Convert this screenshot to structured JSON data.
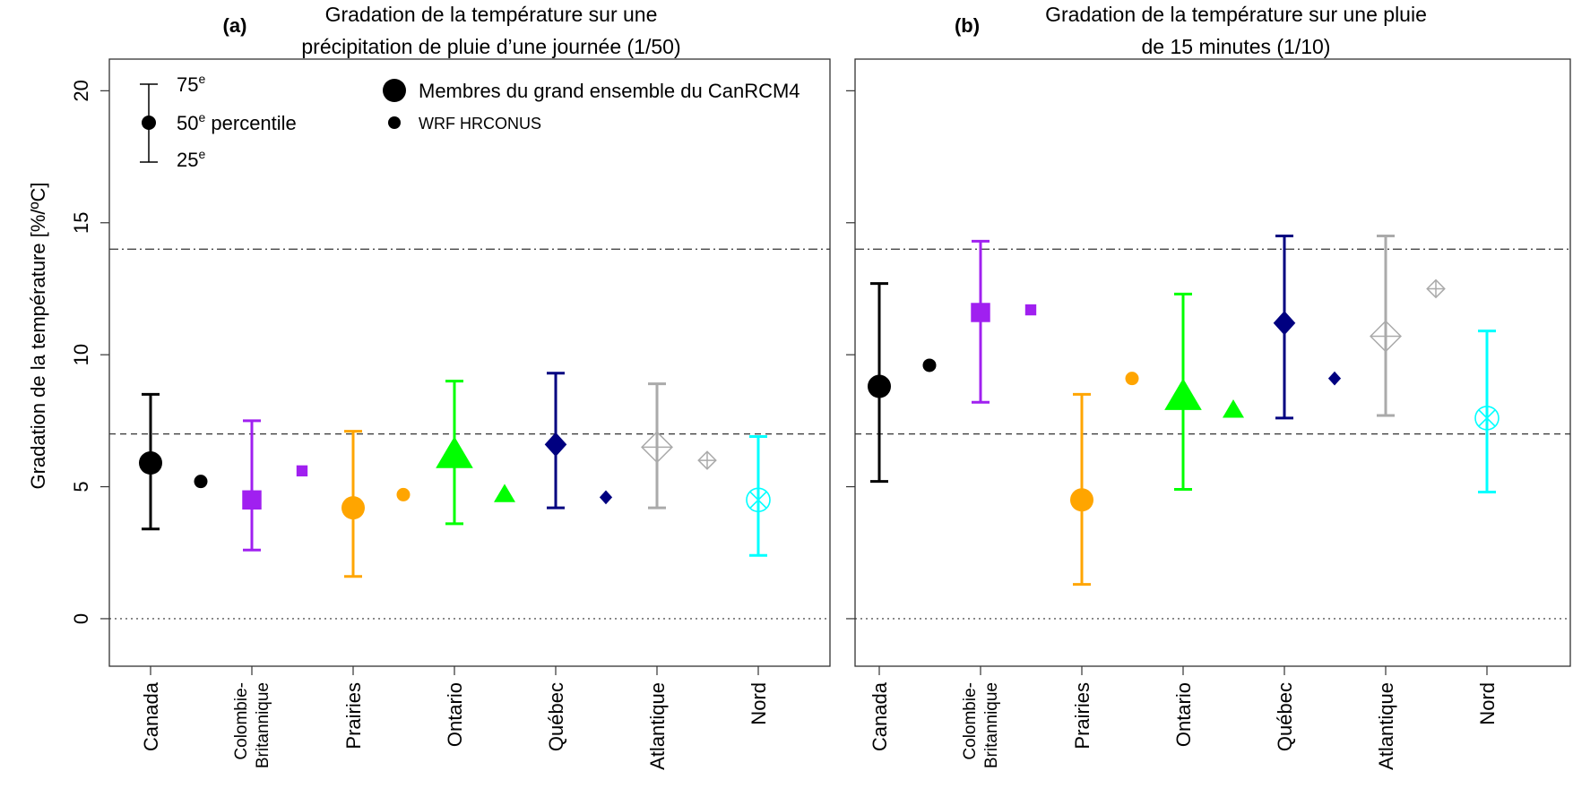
{
  "chart_data": {
    "type": "errorbar",
    "ylabel": "Gradation de la température [%/ºC]",
    "yticks": [
      "0",
      "5",
      "10",
      "15",
      "20"
    ],
    "ylim": [
      -1.8,
      21.2
    ],
    "reference_lines": [
      {
        "value": 14,
        "style": "dashdot"
      },
      {
        "value": 7,
        "style": "dashed"
      },
      {
        "value": 0,
        "style": "dotted"
      }
    ],
    "legend": {
      "whisker_top": "75",
      "whisker_mid_num": "50",
      "whisker_mid_text": "percentile",
      "whisker_bot": "25",
      "superscript": "e",
      "large_marker": "Membres du grand ensemble du CanRCM4",
      "small_marker": "WRF HRCONUS"
    },
    "categories": [
      {
        "id": "canada",
        "lines": [
          "Canada"
        ],
        "color": "#000000",
        "shape": "circle"
      },
      {
        "id": "bc",
        "lines": [
          "Colombie-",
          "Britannique"
        ],
        "color": "#A020F0",
        "shape": "square"
      },
      {
        "id": "prairies",
        "lines": [
          "Prairies"
        ],
        "color": "#FFA500",
        "shape": "circle"
      },
      {
        "id": "ontario",
        "lines": [
          "Ontario"
        ],
        "color": "#00FF00",
        "shape": "triangle"
      },
      {
        "id": "quebec",
        "lines": [
          "Québec"
        ],
        "color": "#000080",
        "shape": "diamond"
      },
      {
        "id": "atlantique",
        "lines": [
          "Atlantique"
        ],
        "color": "#AAAAAA",
        "shape": "diamond-cross"
      },
      {
        "id": "nord",
        "lines": [
          "Nord"
        ],
        "color": "#00FFFF",
        "shape": "circle-x"
      }
    ],
    "panels": [
      {
        "id": "a",
        "tag": "(a)",
        "title_line1": "Gradation de la température sur une",
        "title_line2": "précipitation de pluie d’une journée (1/50)",
        "canrcm4": [
          {
            "p25": 3.4,
            "p50": 5.9,
            "p75": 8.5
          },
          {
            "p25": 2.6,
            "p50": 4.5,
            "p75": 7.5
          },
          {
            "p25": 1.6,
            "p50": 4.2,
            "p75": 7.1
          },
          {
            "p25": 3.6,
            "p50": 6.2,
            "p75": 9.0
          },
          {
            "p25": 4.2,
            "p50": 6.6,
            "p75": 9.3
          },
          {
            "p25": 4.2,
            "p50": 6.5,
            "p75": 8.9
          },
          {
            "p25": 2.4,
            "p50": 4.5,
            "p75": 6.9
          }
        ],
        "wrf": [
          5.2,
          5.6,
          4.7,
          4.7,
          4.6,
          6.0,
          null
        ]
      },
      {
        "id": "b",
        "tag": "(b)",
        "title_line1": "Gradation de la température sur une pluie",
        "title_line2": "de 15 minutes (1/10)",
        "canrcm4": [
          {
            "p25": 5.2,
            "p50": 8.8,
            "p75": 12.7
          },
          {
            "p25": 8.2,
            "p50": 11.6,
            "p75": 14.3
          },
          {
            "p25": 1.3,
            "p50": 4.5,
            "p75": 8.5
          },
          {
            "p25": 4.9,
            "p50": 8.4,
            "p75": 12.3
          },
          {
            "p25": 7.6,
            "p50": 11.2,
            "p75": 14.5
          },
          {
            "p25": 7.7,
            "p50": 10.7,
            "p75": 14.5
          },
          {
            "p25": 4.8,
            "p50": 7.6,
            "p75": 10.9
          }
        ],
        "wrf": [
          9.6,
          11.7,
          9.1,
          7.9,
          9.1,
          12.5,
          null
        ]
      }
    ]
  }
}
